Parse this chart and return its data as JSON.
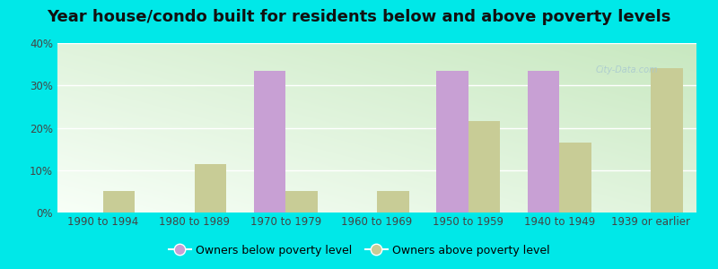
{
  "title": "Year house/condo built for residents below and above poverty levels",
  "categories": [
    "1990 to 1994",
    "1980 to 1989",
    "1970 to 1979",
    "1960 to 1969",
    "1950 to 1959",
    "1940 to 1949",
    "1939 or earlier"
  ],
  "below_poverty": [
    0,
    0,
    33.5,
    0,
    33.5,
    33.5,
    0
  ],
  "above_poverty": [
    5.0,
    11.5,
    5.0,
    5.0,
    21.5,
    16.5,
    34.0
  ],
  "color_below": "#c8a0d4",
  "color_above": "#c8cc96",
  "outer_bg": "#00e8e8",
  "ylim": [
    0,
    40
  ],
  "yticks": [
    0,
    10,
    20,
    30,
    40
  ],
  "ytick_labels": [
    "0%",
    "10%",
    "20%",
    "30%",
    "40%"
  ],
  "bar_width": 0.35,
  "legend_below_label": "Owners below poverty level",
  "legend_above_label": "Owners above poverty level",
  "title_fontsize": 13,
  "tick_fontsize": 8.5,
  "legend_fontsize": 9,
  "grid_color": "#e0eed8",
  "watermark_text": "City-Data.com",
  "watermark_color": "#a8c8d0"
}
